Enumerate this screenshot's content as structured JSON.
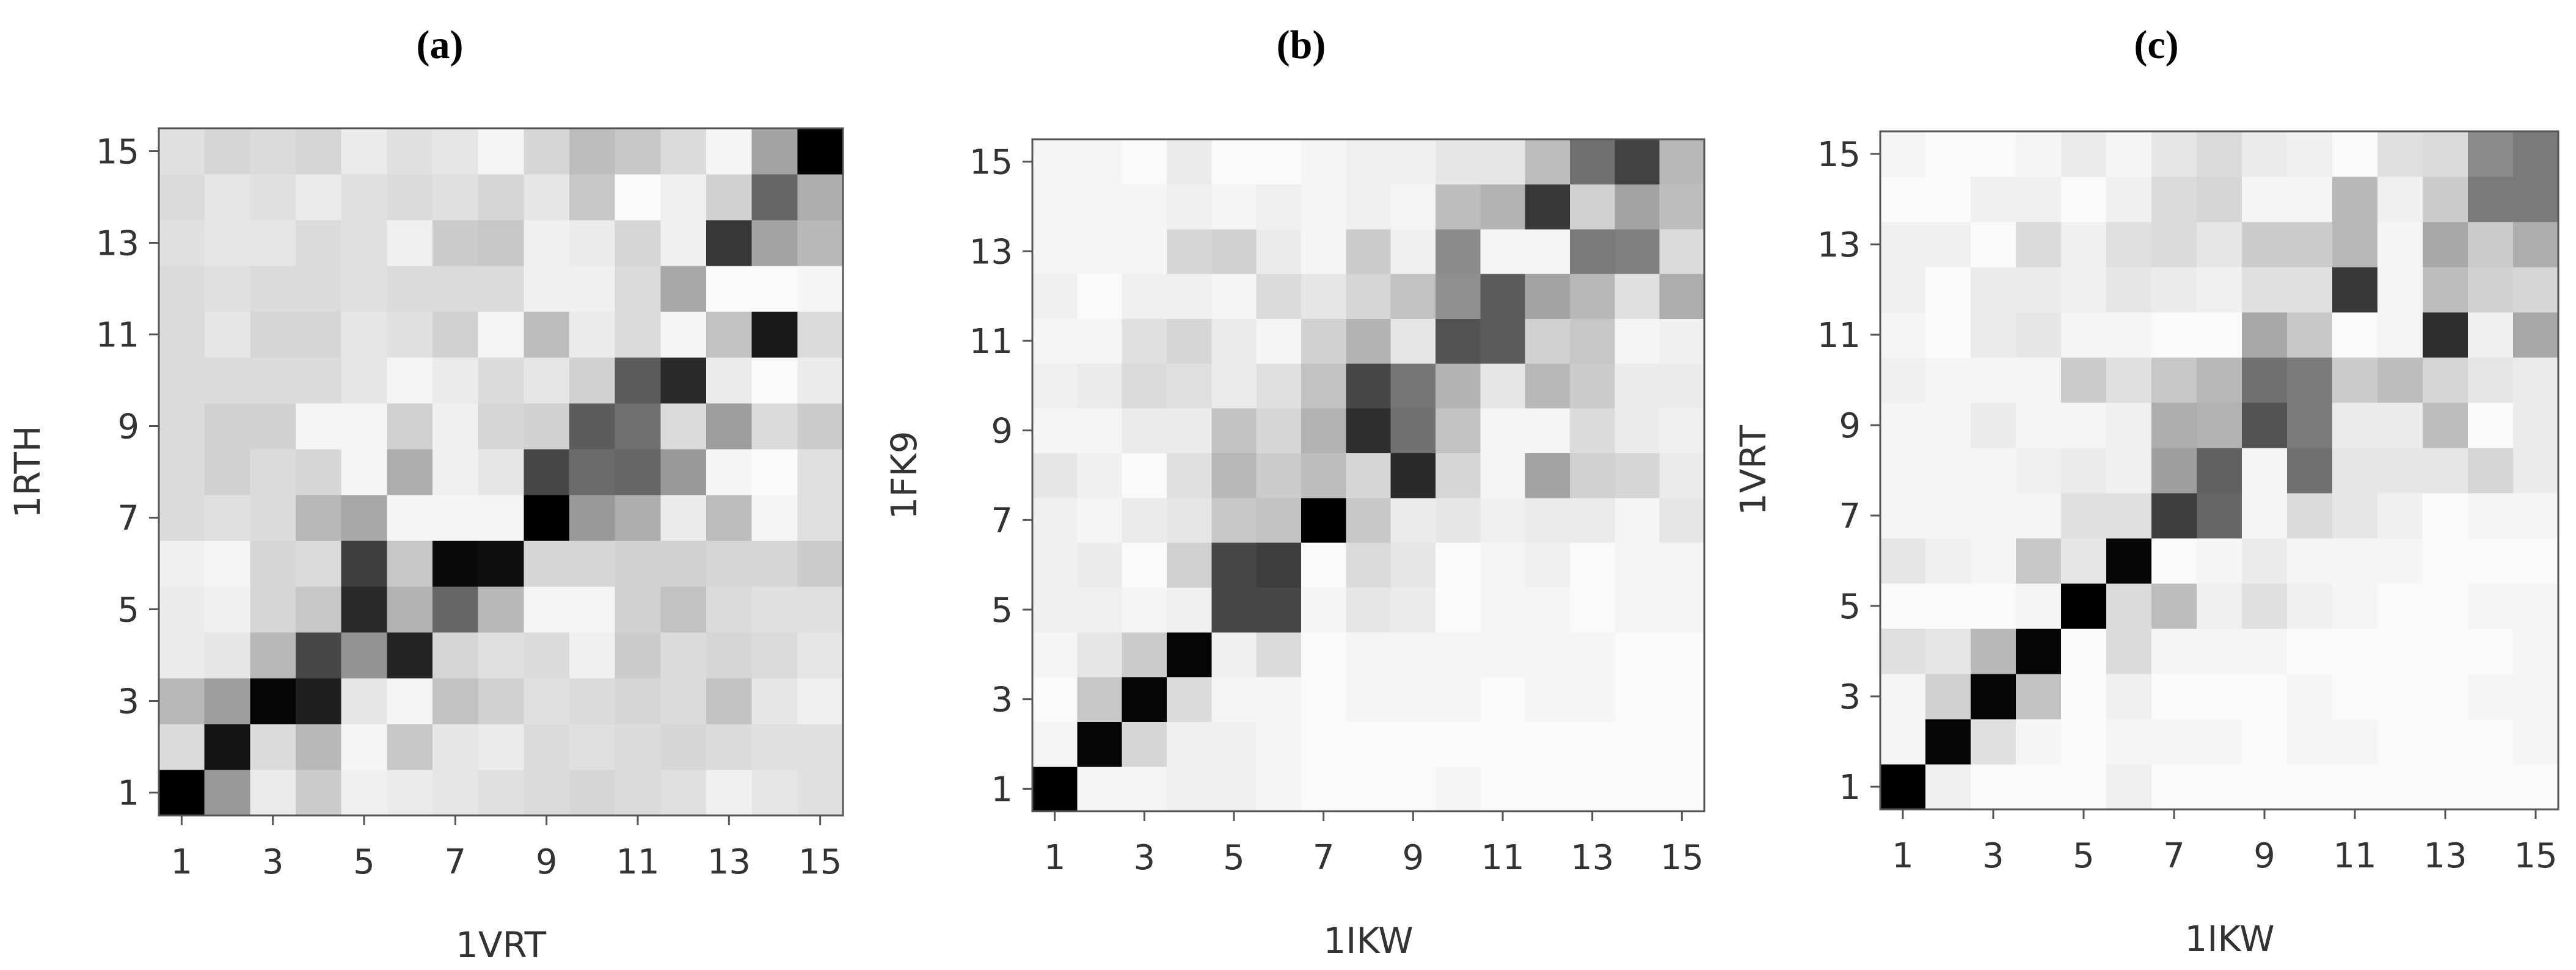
{
  "chart_data": [
    {
      "type": "heatmap",
      "title": "(a)",
      "xlabel": "1VRT",
      "ylabel": "1RTH",
      "x": [
        1,
        2,
        3,
        4,
        5,
        6,
        7,
        8,
        9,
        10,
        11,
        12,
        13,
        14,
        15
      ],
      "y": [
        1,
        2,
        3,
        4,
        5,
        6,
        7,
        8,
        9,
        10,
        11,
        12,
        13,
        14,
        15
      ],
      "x_tick_labels": [
        "1",
        "3",
        "5",
        "7",
        "9",
        "11",
        "13",
        "15"
      ],
      "y_tick_labels": [
        "1",
        "3",
        "5",
        "7",
        "9",
        "11",
        "13",
        "15"
      ],
      "colormap": "white-to-black",
      "value_range": [
        0,
        1
      ],
      "grid": false,
      "values": [
        [
          1.0,
          0.4,
          0.08,
          0.2,
          0.06,
          0.08,
          0.1,
          0.12,
          0.14,
          0.16,
          0.14,
          0.12,
          0.06,
          0.1,
          0.12
        ],
        [
          0.14,
          0.92,
          0.14,
          0.28,
          0.04,
          0.22,
          0.1,
          0.08,
          0.14,
          0.12,
          0.14,
          0.16,
          0.14,
          0.12,
          0.12
        ],
        [
          0.28,
          0.38,
          0.98,
          0.88,
          0.1,
          0.04,
          0.24,
          0.18,
          0.12,
          0.14,
          0.16,
          0.14,
          0.24,
          0.1,
          0.06
        ],
        [
          0.08,
          0.1,
          0.28,
          0.72,
          0.42,
          0.86,
          0.16,
          0.12,
          0.14,
          0.06,
          0.2,
          0.14,
          0.16,
          0.14,
          0.1
        ],
        [
          0.08,
          0.06,
          0.16,
          0.22,
          0.84,
          0.3,
          0.6,
          0.28,
          0.04,
          0.04,
          0.18,
          0.24,
          0.14,
          0.12,
          0.12
        ],
        [
          0.06,
          0.04,
          0.16,
          0.14,
          0.76,
          0.22,
          0.96,
          0.94,
          0.16,
          0.16,
          0.18,
          0.18,
          0.16,
          0.16,
          0.2
        ],
        [
          0.14,
          0.12,
          0.14,
          0.28,
          0.34,
          0.04,
          0.04,
          0.04,
          1.0,
          0.4,
          0.32,
          0.08,
          0.26,
          0.04,
          0.12
        ],
        [
          0.14,
          0.18,
          0.14,
          0.16,
          0.04,
          0.32,
          0.06,
          0.1,
          0.72,
          0.58,
          0.6,
          0.4,
          0.04,
          0.02,
          0.12
        ],
        [
          0.14,
          0.18,
          0.18,
          0.04,
          0.04,
          0.18,
          0.06,
          0.16,
          0.18,
          0.64,
          0.56,
          0.14,
          0.38,
          0.14,
          0.2
        ],
        [
          0.14,
          0.14,
          0.14,
          0.14,
          0.1,
          0.04,
          0.08,
          0.14,
          0.1,
          0.18,
          0.64,
          0.84,
          0.08,
          0.02,
          0.08
        ],
        [
          0.14,
          0.1,
          0.16,
          0.16,
          0.1,
          0.12,
          0.18,
          0.04,
          0.26,
          0.08,
          0.14,
          0.04,
          0.24,
          0.9,
          0.14
        ],
        [
          0.14,
          0.12,
          0.14,
          0.14,
          0.12,
          0.14,
          0.14,
          0.14,
          0.06,
          0.06,
          0.14,
          0.34,
          0.02,
          0.02,
          0.04
        ],
        [
          0.12,
          0.1,
          0.1,
          0.14,
          0.12,
          0.06,
          0.2,
          0.22,
          0.06,
          0.08,
          0.16,
          0.06,
          0.78,
          0.36,
          0.28
        ],
        [
          0.14,
          0.1,
          0.12,
          0.08,
          0.12,
          0.14,
          0.12,
          0.16,
          0.1,
          0.22,
          0.02,
          0.06,
          0.18,
          0.6,
          0.32
        ],
        [
          0.12,
          0.16,
          0.14,
          0.16,
          0.08,
          0.12,
          0.1,
          0.04,
          0.16,
          0.26,
          0.22,
          0.14,
          0.04,
          0.36,
          1.0
        ]
      ]
    },
    {
      "type": "heatmap",
      "title": "(b)",
      "xlabel": "1IKW",
      "ylabel": "1FK9",
      "x": [
        1,
        2,
        3,
        4,
        5,
        6,
        7,
        8,
        9,
        10,
        11,
        12,
        13,
        14,
        15
      ],
      "y": [
        1,
        2,
        3,
        4,
        5,
        6,
        7,
        8,
        9,
        10,
        11,
        12,
        13,
        14,
        15
      ],
      "x_tick_labels": [
        "1",
        "3",
        "5",
        "7",
        "9",
        "11",
        "13",
        "15"
      ],
      "y_tick_labels": [
        "1",
        "3",
        "5",
        "7",
        "9",
        "11",
        "13",
        "15"
      ],
      "colormap": "white-to-black",
      "value_range": [
        0,
        1
      ],
      "grid": false,
      "values": [
        [
          1.0,
          0.04,
          0.04,
          0.06,
          0.06,
          0.04,
          0.02,
          0.02,
          0.02,
          0.04,
          0.02,
          0.02,
          0.02,
          0.02,
          0.02
        ],
        [
          0.04,
          0.98,
          0.16,
          0.06,
          0.06,
          0.04,
          0.02,
          0.02,
          0.02,
          0.02,
          0.02,
          0.02,
          0.02,
          0.02,
          0.02
        ],
        [
          0.02,
          0.22,
          0.98,
          0.14,
          0.04,
          0.04,
          0.02,
          0.04,
          0.04,
          0.04,
          0.02,
          0.04,
          0.04,
          0.02,
          0.02
        ],
        [
          0.04,
          0.1,
          0.2,
          0.98,
          0.06,
          0.14,
          0.02,
          0.04,
          0.04,
          0.04,
          0.04,
          0.04,
          0.04,
          0.02,
          0.02
        ],
        [
          0.06,
          0.06,
          0.04,
          0.06,
          0.72,
          0.72,
          0.04,
          0.1,
          0.08,
          0.02,
          0.04,
          0.04,
          0.02,
          0.04,
          0.04
        ],
        [
          0.06,
          0.08,
          0.02,
          0.18,
          0.72,
          0.76,
          0.02,
          0.14,
          0.1,
          0.02,
          0.04,
          0.06,
          0.02,
          0.04,
          0.04
        ],
        [
          0.06,
          0.04,
          0.08,
          0.1,
          0.22,
          0.24,
          1.0,
          0.22,
          0.08,
          0.1,
          0.06,
          0.08,
          0.08,
          0.04,
          0.1
        ],
        [
          0.1,
          0.06,
          0.02,
          0.12,
          0.28,
          0.2,
          0.26,
          0.16,
          0.84,
          0.16,
          0.04,
          0.36,
          0.18,
          0.16,
          0.08
        ],
        [
          0.04,
          0.04,
          0.08,
          0.08,
          0.24,
          0.16,
          0.3,
          0.82,
          0.56,
          0.24,
          0.04,
          0.04,
          0.14,
          0.08,
          0.06
        ],
        [
          0.06,
          0.08,
          0.14,
          0.12,
          0.08,
          0.12,
          0.24,
          0.72,
          0.54,
          0.3,
          0.1,
          0.28,
          0.2,
          0.08,
          0.08
        ],
        [
          0.04,
          0.04,
          0.12,
          0.16,
          0.08,
          0.04,
          0.18,
          0.3,
          0.1,
          0.68,
          0.64,
          0.18,
          0.22,
          0.04,
          0.06
        ],
        [
          0.06,
          0.02,
          0.06,
          0.06,
          0.04,
          0.14,
          0.1,
          0.16,
          0.24,
          0.44,
          0.64,
          0.36,
          0.28,
          0.12,
          0.32
        ],
        [
          0.04,
          0.04,
          0.04,
          0.16,
          0.18,
          0.08,
          0.04,
          0.2,
          0.06,
          0.46,
          0.04,
          0.04,
          0.52,
          0.5,
          0.14
        ],
        [
          0.04,
          0.04,
          0.04,
          0.06,
          0.04,
          0.06,
          0.04,
          0.06,
          0.04,
          0.26,
          0.3,
          0.78,
          0.18,
          0.36,
          0.26
        ],
        [
          0.04,
          0.04,
          0.02,
          0.08,
          0.02,
          0.02,
          0.04,
          0.06,
          0.06,
          0.1,
          0.1,
          0.26,
          0.56,
          0.74,
          0.28
        ]
      ]
    },
    {
      "type": "heatmap",
      "title": "(c)",
      "xlabel": "1IKW",
      "ylabel": "1VRT",
      "x": [
        1,
        2,
        3,
        4,
        5,
        6,
        7,
        8,
        9,
        10,
        11,
        12,
        13,
        14,
        15
      ],
      "y": [
        1,
        2,
        3,
        4,
        5,
        6,
        7,
        8,
        9,
        10,
        11,
        12,
        13,
        14,
        15
      ],
      "x_tick_labels": [
        "1",
        "3",
        "5",
        "7",
        "9",
        "11",
        "13",
        "15"
      ],
      "y_tick_labels": [
        "1",
        "3",
        "5",
        "7",
        "9",
        "11",
        "13",
        "15"
      ],
      "colormap": "white-to-black",
      "value_range": [
        0,
        1
      ],
      "grid": false,
      "values": [
        [
          1.0,
          0.06,
          0.02,
          0.02,
          0.02,
          0.06,
          0.02,
          0.02,
          0.02,
          0.02,
          0.02,
          0.02,
          0.02,
          0.02,
          0.02
        ],
        [
          0.04,
          0.98,
          0.12,
          0.04,
          0.02,
          0.04,
          0.04,
          0.04,
          0.02,
          0.04,
          0.04,
          0.02,
          0.02,
          0.02,
          0.04
        ],
        [
          0.04,
          0.18,
          0.98,
          0.24,
          0.02,
          0.06,
          0.02,
          0.02,
          0.02,
          0.04,
          0.02,
          0.02,
          0.02,
          0.04,
          0.04
        ],
        [
          0.12,
          0.1,
          0.28,
          0.98,
          0.02,
          0.14,
          0.04,
          0.04,
          0.04,
          0.02,
          0.02,
          0.02,
          0.02,
          0.02,
          0.04
        ],
        [
          0.02,
          0.02,
          0.02,
          0.04,
          1.0,
          0.14,
          0.26,
          0.06,
          0.12,
          0.06,
          0.04,
          0.02,
          0.02,
          0.04,
          0.04
        ],
        [
          0.1,
          0.06,
          0.04,
          0.22,
          0.1,
          0.98,
          0.02,
          0.04,
          0.08,
          0.04,
          0.04,
          0.04,
          0.02,
          0.02,
          0.02
        ],
        [
          0.04,
          0.04,
          0.04,
          0.04,
          0.12,
          0.12,
          0.76,
          0.6,
          0.04,
          0.14,
          0.1,
          0.06,
          0.02,
          0.04,
          0.04
        ],
        [
          0.04,
          0.04,
          0.04,
          0.06,
          0.08,
          0.06,
          0.38,
          0.62,
          0.04,
          0.56,
          0.1,
          0.1,
          0.1,
          0.16,
          0.08
        ],
        [
          0.04,
          0.04,
          0.08,
          0.04,
          0.04,
          0.06,
          0.32,
          0.3,
          0.68,
          0.52,
          0.08,
          0.08,
          0.26,
          0.02,
          0.08
        ],
        [
          0.06,
          0.04,
          0.04,
          0.04,
          0.2,
          0.12,
          0.22,
          0.28,
          0.56,
          0.52,
          0.2,
          0.26,
          0.16,
          0.1,
          0.08
        ],
        [
          0.04,
          0.02,
          0.08,
          0.1,
          0.04,
          0.04,
          0.02,
          0.02,
          0.34,
          0.22,
          0.02,
          0.04,
          0.82,
          0.06,
          0.34
        ],
        [
          0.06,
          0.02,
          0.08,
          0.08,
          0.06,
          0.1,
          0.08,
          0.06,
          0.12,
          0.12,
          0.78,
          0.04,
          0.26,
          0.18,
          0.16
        ],
        [
          0.06,
          0.06,
          0.02,
          0.14,
          0.06,
          0.12,
          0.14,
          0.1,
          0.2,
          0.2,
          0.28,
          0.04,
          0.34,
          0.2,
          0.32
        ],
        [
          0.02,
          0.02,
          0.06,
          0.06,
          0.02,
          0.06,
          0.14,
          0.16,
          0.04,
          0.04,
          0.28,
          0.06,
          0.2,
          0.52,
          0.52
        ],
        [
          0.04,
          0.02,
          0.02,
          0.04,
          0.08,
          0.04,
          0.1,
          0.14,
          0.08,
          0.06,
          0.02,
          0.12,
          0.14,
          0.46,
          0.52
        ]
      ]
    }
  ]
}
